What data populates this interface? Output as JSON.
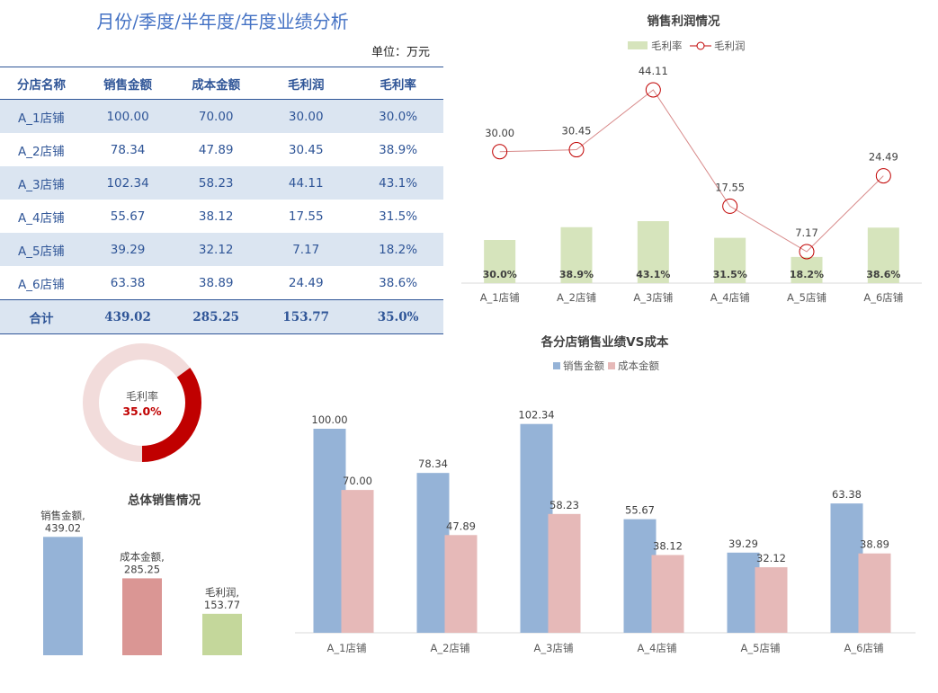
{
  "header": {
    "title": "月份/季度/半年度/年度业绩分析",
    "unit": "单位：万元"
  },
  "table": {
    "columns": [
      "分店名称",
      "销售金额",
      "成本金额",
      "毛利润",
      "毛利率"
    ],
    "rows": [
      [
        "A_1店铺",
        "100.00",
        "70.00",
        "30.00",
        "30.0%"
      ],
      [
        "A_2店铺",
        "78.34",
        "47.89",
        "30.45",
        "38.9%"
      ],
      [
        "A_3店铺",
        "102.34",
        "58.23",
        "44.11",
        "43.1%"
      ],
      [
        "A_4店铺",
        "55.67",
        "38.12",
        "17.55",
        "31.5%"
      ],
      [
        "A_5店铺",
        "39.29",
        "32.12",
        "7.17",
        "18.2%"
      ],
      [
        "A_6店铺",
        "63.38",
        "38.89",
        "24.49",
        "38.6%"
      ]
    ],
    "total": [
      "合计",
      "439.02",
      "285.25",
      "153.77",
      "35.0%"
    ]
  },
  "chart_data": [
    {
      "type": "bar+line",
      "title": "销售利润情况",
      "categories": [
        "A_1店铺",
        "A_2店铺",
        "A_3店铺",
        "A_4店铺",
        "A_5店铺",
        "A_6店铺"
      ],
      "series": [
        {
          "name": "毛利率",
          "type": "bar",
          "values": [
            0.3,
            0.389,
            0.431,
            0.315,
            0.182,
            0.386
          ],
          "labels": [
            "30.0%",
            "38.9%",
            "43.1%",
            "31.5%",
            "18.2%",
            "38.6%"
          ],
          "color": "#d6e4bc"
        },
        {
          "name": "毛利润",
          "type": "line",
          "values": [
            30.0,
            30.45,
            44.11,
            17.55,
            7.17,
            24.49
          ],
          "labels": [
            "30.00",
            "30.45",
            "44.11",
            "17.55",
            "7.17",
            "24.49"
          ],
          "color": "#c00000"
        }
      ],
      "legend": "top"
    },
    {
      "type": "pie",
      "subtype": "donut",
      "center_label": "毛利率",
      "center_value": "35.0%",
      "value": 0.35,
      "colors": {
        "filled": "#c00000",
        "remainder": "#f2dcdb"
      }
    },
    {
      "type": "bar",
      "title": "总体销售情况",
      "categories": [
        "销售金额",
        "成本金额",
        "毛利润"
      ],
      "values": [
        439.02,
        285.25,
        153.77
      ],
      "labels": [
        "销售金额,\n439.02",
        "成本金额,\n285.25",
        "毛利润,\n153.77"
      ],
      "label_lines": [
        [
          "销售金额,",
          "439.02"
        ],
        [
          "成本金额,",
          "285.25"
        ],
        [
          "毛利润,",
          "153.77"
        ]
      ],
      "colors": [
        "#95b3d7",
        "#da9694",
        "#c4d79b"
      ]
    },
    {
      "type": "bar",
      "title": "各分店销售业绩VS成本",
      "categories": [
        "A_1店铺",
        "A_2店铺",
        "A_3店铺",
        "A_4店铺",
        "A_5店铺",
        "A_6店铺"
      ],
      "series": [
        {
          "name": "销售金额",
          "values": [
            100.0,
            78.34,
            102.34,
            55.67,
            39.29,
            63.38
          ],
          "labels": [
            "100.00",
            "78.34",
            "102.34",
            "55.67",
            "39.29",
            "63.38"
          ],
          "color": "#95b3d7"
        },
        {
          "name": "成本金额",
          "values": [
            70.0,
            47.89,
            58.23,
            38.12,
            32.12,
            38.89
          ],
          "labels": [
            "70.00",
            "47.89",
            "58.23",
            "38.12",
            "32.12",
            "38.89"
          ],
          "color": "#e6b9b8"
        }
      ],
      "legend": "top"
    }
  ]
}
